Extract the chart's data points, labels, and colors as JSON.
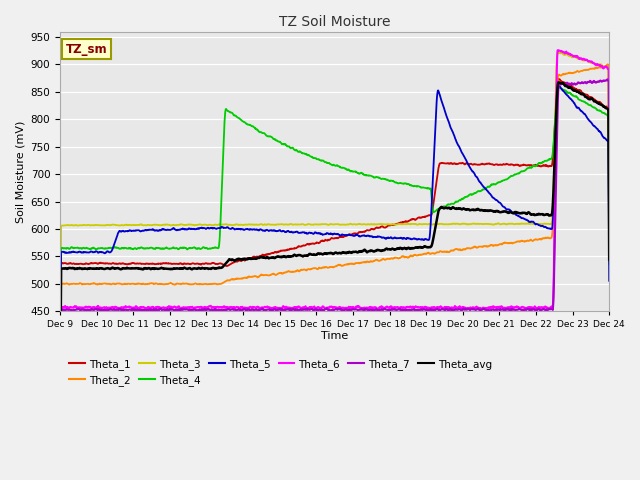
{
  "title": "TZ Soil Moisture",
  "xlabel": "Time",
  "ylabel": "Soil Moisture (mV)",
  "ylim": [
    450,
    960
  ],
  "yticks": [
    450,
    500,
    550,
    600,
    650,
    700,
    750,
    800,
    850,
    900,
    950
  ],
  "label_box_text": "TZ_sm",
  "label_box_color": "#ffffcc",
  "label_box_border": "#999900",
  "series_colors": {
    "Theta_1": "#cc0000",
    "Theta_2": "#ff8800",
    "Theta_3": "#cccc00",
    "Theta_4": "#00cc00",
    "Theta_5": "#0000cc",
    "Theta_6": "#ff00ff",
    "Theta_7": "#aa00cc",
    "Theta_avg": "#000000"
  },
  "xtick_labels": [
    "Dec 9",
    "Dec 10",
    "Dec 11",
    "Dec 12",
    "Dec 13",
    "Dec 14",
    "Dec 15",
    "Dec 16",
    "Dec 17",
    "Dec 18",
    "Dec 19",
    "Dec 20",
    "Dec 21",
    "Dec 22",
    "Dec 23",
    "Dec 24"
  ]
}
